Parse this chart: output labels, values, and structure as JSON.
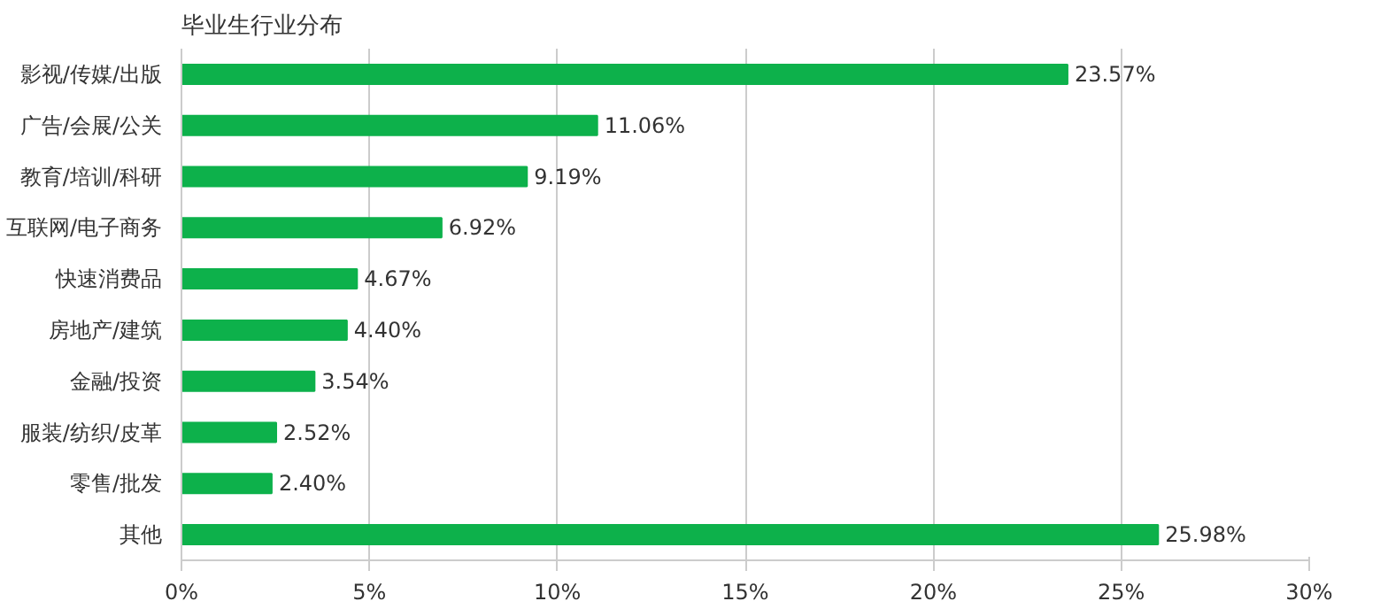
{
  "chart_data": {
    "type": "bar",
    "orientation": "horizontal",
    "title": "毕业生行业分布",
    "categories": [
      "影视/传媒/出版",
      "广告/会展/公关",
      "教育/培训/科研",
      "互联网/电子商务",
      "快速消费品",
      "房地产/建筑",
      "金融/投资",
      "服装/纺织/皮革",
      "零售/批发",
      "其他"
    ],
    "values": [
      23.57,
      11.06,
      9.19,
      6.92,
      4.67,
      4.4,
      3.54,
      2.52,
      2.4,
      25.98
    ],
    "value_labels": [
      "23.57%",
      "11.06%",
      "9.19%",
      "6.92%",
      "4.67%",
      "4.40%",
      "3.54%",
      "2.52%",
      "2.40%",
      "25.98%"
    ],
    "color": "#0db14b",
    "xlim": [
      0,
      30
    ],
    "xticks": [
      {
        "value": 0,
        "label": "0%"
      },
      {
        "value": 5,
        "label": "5%"
      },
      {
        "value": 10,
        "label": "10%"
      },
      {
        "value": 15,
        "label": "15%"
      },
      {
        "value": 20,
        "label": "20%"
      },
      {
        "value": 25,
        "label": "25%"
      },
      {
        "value": 30,
        "label": "30%"
      }
    ],
    "grid": "x"
  }
}
